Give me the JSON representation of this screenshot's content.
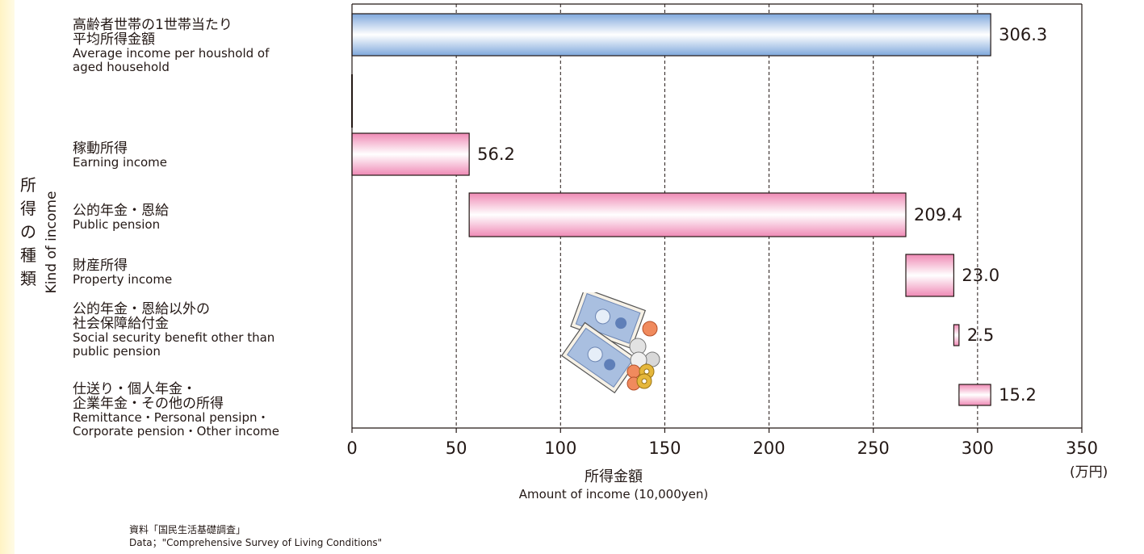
{
  "y_axis": {
    "title_jp": "所得の種類",
    "title_en": "Kind of income"
  },
  "categories": [
    {
      "jp": "高齢者世帯の1世帯当たり\n平均所得金額",
      "en": "Average income per houshold of\naged household"
    },
    {
      "jp": "稼動所得",
      "en": "Earning income"
    },
    {
      "jp": "公的年金・恩給",
      "en": "Public pension"
    },
    {
      "jp": "財産所得",
      "en": "Property income"
    },
    {
      "jp": "公的年金・恩給以外の\n社会保障給付金",
      "en": "Social security benefit other than\npublic pension"
    },
    {
      "jp": "仕送り・個人年金・\n企業年金・その他の所得",
      "en": "Remittance・Personal pensipn・\nCorporate pension・Other income"
    }
  ],
  "x_axis": {
    "title_jp": "所得金額",
    "title_en": "Amount of income (10,000yen)",
    "unit": "(万円)"
  },
  "source": {
    "line1": "資料「国民生活基礎調査」",
    "line2": "Data；\"Comprehensive Survey of Living Conditions\""
  },
  "colors": {
    "total_bar": "#7fa8dc",
    "component_bar": "#ef8ab5",
    "bar_outline": "#231815",
    "grid": "#231815",
    "left_strip": "#fff3c4"
  },
  "chart_data": {
    "type": "bar",
    "orientation": "horizontal",
    "subtype": "waterfall",
    "categories": [
      "Average income per houshold of aged household",
      "Earning income",
      "Public pension",
      "Property income",
      "Social security benefit other than public pension",
      "Remittance・Personal pensipn・Corporate pension・Other income"
    ],
    "values": [
      306.3,
      56.2,
      209.4,
      23.0,
      2.5,
      15.2
    ],
    "value_labels": [
      "306.3",
      "56.2",
      "209.4",
      "23.0",
      "2.5",
      "15.2"
    ],
    "bar_starts": [
      0,
      0,
      56.2,
      265.6,
      288.6,
      291.1
    ],
    "xlim": [
      0,
      350
    ],
    "xticks": [
      0,
      50,
      100,
      150,
      200,
      250,
      300,
      350
    ],
    "grid": "vertical dashed",
    "xlabel": "Amount of income (10,000yen)",
    "ylabel": "Kind of income"
  }
}
